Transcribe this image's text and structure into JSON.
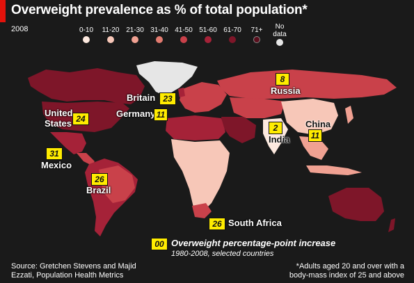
{
  "title": "Overweight prevalence as % of total population*",
  "year": "2008",
  "legend": [
    {
      "label": "0-10",
      "color": "#fde9df"
    },
    {
      "label": "11-20",
      "color": "#f7c7b8"
    },
    {
      "label": "21-30",
      "color": "#f0a192"
    },
    {
      "label": "31-40",
      "color": "#e27b70"
    },
    {
      "label": "41-50",
      "color": "#c9414a"
    },
    {
      "label": "51-60",
      "color": "#a52238"
    },
    {
      "label": "61-70",
      "color": "#7e1629"
    },
    {
      "label": "71+",
      "color": "#5a0e1d"
    },
    {
      "label": "No data",
      "color": "#e6e6e6"
    }
  ],
  "countries": [
    {
      "name": "United States",
      "value": "24"
    },
    {
      "name": "Mexico",
      "value": "31"
    },
    {
      "name": "Brazil",
      "value": "26"
    },
    {
      "name": "Britain",
      "value": "23"
    },
    {
      "name": "Germany",
      "value": "11"
    },
    {
      "name": "Russia",
      "value": "8"
    },
    {
      "name": "India",
      "value": "2"
    },
    {
      "name": "China",
      "value": "11"
    },
    {
      "name": "South Africa",
      "value": "26"
    }
  ],
  "key": {
    "badge": "00",
    "label": "Overweight percentage-point increase",
    "sub": "1980-2008, selected countries"
  },
  "source": "Source: Gretchen Stevens and Majid Ezzati, Population Health Metrics",
  "note": "*Adults aged 20 and over with a body-mass index of 25 and above"
}
